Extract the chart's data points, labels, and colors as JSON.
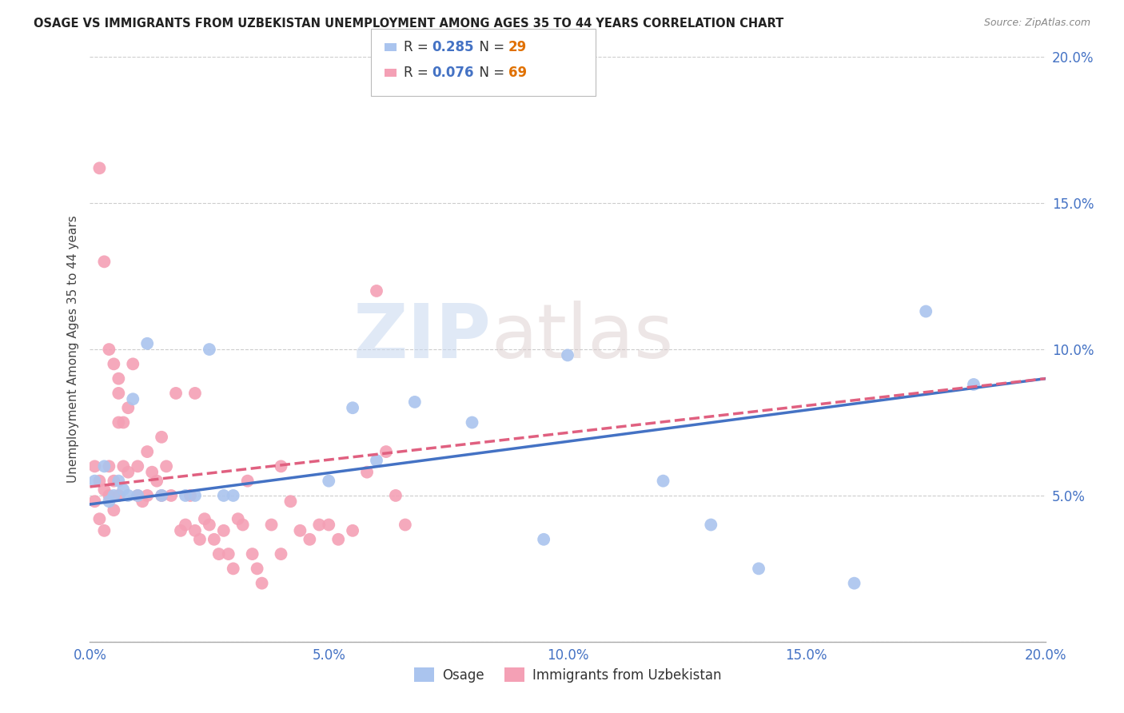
{
  "title": "OSAGE VS IMMIGRANTS FROM UZBEKISTAN UNEMPLOYMENT AMONG AGES 35 TO 44 YEARS CORRELATION CHART",
  "source_text": "Source: ZipAtlas.com",
  "ylabel": "Unemployment Among Ages 35 to 44 years",
  "xmin": 0.0,
  "xmax": 0.2,
  "ymin": 0.0,
  "ymax": 0.2,
  "xticks": [
    0.0,
    0.05,
    0.1,
    0.15,
    0.2
  ],
  "yticks": [
    0.0,
    0.05,
    0.1,
    0.15,
    0.2
  ],
  "xtick_labels": [
    "0.0%",
    "5.0%",
    "10.0%",
    "15.0%",
    "20.0%"
  ],
  "ytick_labels": [
    "",
    "5.0%",
    "10.0%",
    "15.0%",
    "20.0%"
  ],
  "series1_name": "Osage",
  "series1_color": "#aac4ee",
  "series1_line_color": "#4472c4",
  "series1_R": 0.285,
  "series1_N": 29,
  "series2_name": "Immigrants from Uzbekistan",
  "series2_color": "#f4a0b5",
  "series2_line_color": "#e06080",
  "series2_R": 0.076,
  "series2_N": 69,
  "watermark_zip": "ZIP",
  "watermark_atlas": "atlas",
  "background_color": "#ffffff",
  "grid_color": "#cccccc",
  "osage_x": [
    0.001,
    0.003,
    0.004,
    0.005,
    0.006,
    0.007,
    0.008,
    0.009,
    0.01,
    0.012,
    0.015,
    0.02,
    0.022,
    0.025,
    0.028,
    0.03,
    0.05,
    0.055,
    0.06,
    0.068,
    0.08,
    0.095,
    0.1,
    0.12,
    0.13,
    0.14,
    0.16,
    0.175,
    0.185
  ],
  "osage_y": [
    0.055,
    0.06,
    0.048,
    0.05,
    0.055,
    0.052,
    0.05,
    0.083,
    0.05,
    0.102,
    0.05,
    0.05,
    0.05,
    0.1,
    0.05,
    0.05,
    0.055,
    0.08,
    0.062,
    0.082,
    0.075,
    0.035,
    0.098,
    0.055,
    0.04,
    0.025,
    0.02,
    0.113,
    0.088
  ],
  "uzbek_x": [
    0.001,
    0.001,
    0.002,
    0.002,
    0.003,
    0.003,
    0.004,
    0.004,
    0.005,
    0.005,
    0.006,
    0.006,
    0.006,
    0.007,
    0.007,
    0.008,
    0.008,
    0.009,
    0.01,
    0.01,
    0.011,
    0.012,
    0.012,
    0.013,
    0.014,
    0.015,
    0.015,
    0.016,
    0.017,
    0.018,
    0.019,
    0.02,
    0.021,
    0.022,
    0.022,
    0.023,
    0.024,
    0.025,
    0.026,
    0.027,
    0.028,
    0.029,
    0.03,
    0.031,
    0.032,
    0.033,
    0.034,
    0.035,
    0.036,
    0.038,
    0.04,
    0.04,
    0.042,
    0.044,
    0.046,
    0.048,
    0.05,
    0.052,
    0.055,
    0.058,
    0.06,
    0.062,
    0.064,
    0.066,
    0.002,
    0.003,
    0.004,
    0.005,
    0.006
  ],
  "uzbek_y": [
    0.06,
    0.048,
    0.055,
    0.042,
    0.052,
    0.038,
    0.06,
    0.05,
    0.055,
    0.045,
    0.085,
    0.05,
    0.09,
    0.075,
    0.06,
    0.08,
    0.058,
    0.095,
    0.06,
    0.05,
    0.048,
    0.065,
    0.05,
    0.058,
    0.055,
    0.07,
    0.05,
    0.06,
    0.05,
    0.085,
    0.038,
    0.04,
    0.05,
    0.085,
    0.038,
    0.035,
    0.042,
    0.04,
    0.035,
    0.03,
    0.038,
    0.03,
    0.025,
    0.042,
    0.04,
    0.055,
    0.03,
    0.025,
    0.02,
    0.04,
    0.03,
    0.06,
    0.048,
    0.038,
    0.035,
    0.04,
    0.04,
    0.035,
    0.038,
    0.058,
    0.12,
    0.065,
    0.05,
    0.04,
    0.162,
    0.13,
    0.1,
    0.095,
    0.075
  ]
}
